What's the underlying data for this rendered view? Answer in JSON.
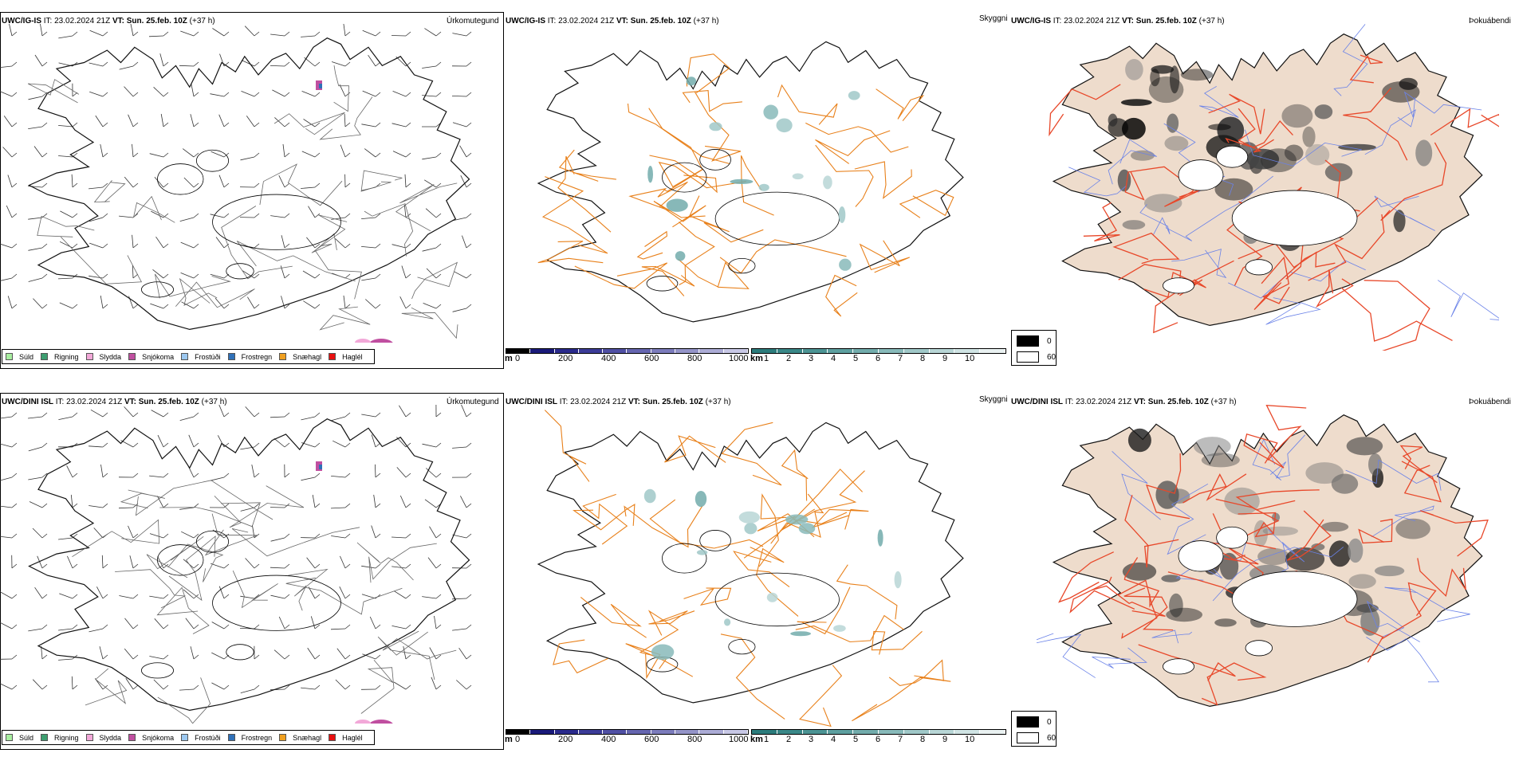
{
  "rows": [
    {
      "model": "UWC/IG-IS",
      "it_label": "IT:",
      "it_value": "23.02.2024 21Z",
      "vt_label": "VT:",
      "vt_value": "Sun. 25.feb. 10Z",
      "lead": "(+37 h)"
    },
    {
      "model": "UWC/DINI ISL",
      "it_label": "IT:",
      "it_value": "23.02.2024 21Z",
      "vt_label": "VT:",
      "vt_value": "Sun. 25.feb. 10Z",
      "lead": "(+37 h)"
    }
  ],
  "titles": {
    "precip_type": "Úrkomutegund",
    "visibility": "Skyggni",
    "fog": "Þokuábendi"
  },
  "precip_legend": [
    {
      "label": "Súld",
      "color": "#a8eea0"
    },
    {
      "label": "Rigning",
      "color": "#3d9e70"
    },
    {
      "label": "Slydda",
      "color": "#f2a8d8"
    },
    {
      "label": "Snjókoma",
      "color": "#c04fa0"
    },
    {
      "label": "Frostúði",
      "color": "#9cc8f0"
    },
    {
      "label": "Frostregn",
      "color": "#2f70b8"
    },
    {
      "label": "Snæhagl",
      "color": "#f0a020"
    },
    {
      "label": "Haglél",
      "color": "#e81010"
    }
  ],
  "height_bar": {
    "unit": "m",
    "ticks": [
      "0",
      "200",
      "400",
      "600",
      "800",
      "1000"
    ],
    "colors": [
      "#000000",
      "#1a1a7a",
      "#2a2a8c",
      "#3c3c98",
      "#5050a4",
      "#6666b0",
      "#7c7cbc",
      "#9494c8",
      "#acacd6",
      "#c8c8e6"
    ]
  },
  "visibility_bar": {
    "unit": "km",
    "ticks": [
      "1",
      "2",
      "3",
      "4",
      "5",
      "6",
      "7",
      "8",
      "9",
      "10"
    ],
    "colors": [
      "#2c7c7c",
      "#3a8888",
      "#4c9494",
      "#5ea0a0",
      "#72acac",
      "#88baba",
      "#a0c8c8",
      "#b8d6d6",
      "#d0e4e4",
      "#eaf2f2"
    ]
  },
  "fog_legend": [
    {
      "label": "0",
      "color": "#000000"
    },
    {
      "label": "60",
      "color": "#ffffff"
    }
  ],
  "colors": {
    "roads": "#e8801a",
    "fog_roads": "#e8482a",
    "fog_land": "#eedccc",
    "rivers": "#6a82e8"
  }
}
